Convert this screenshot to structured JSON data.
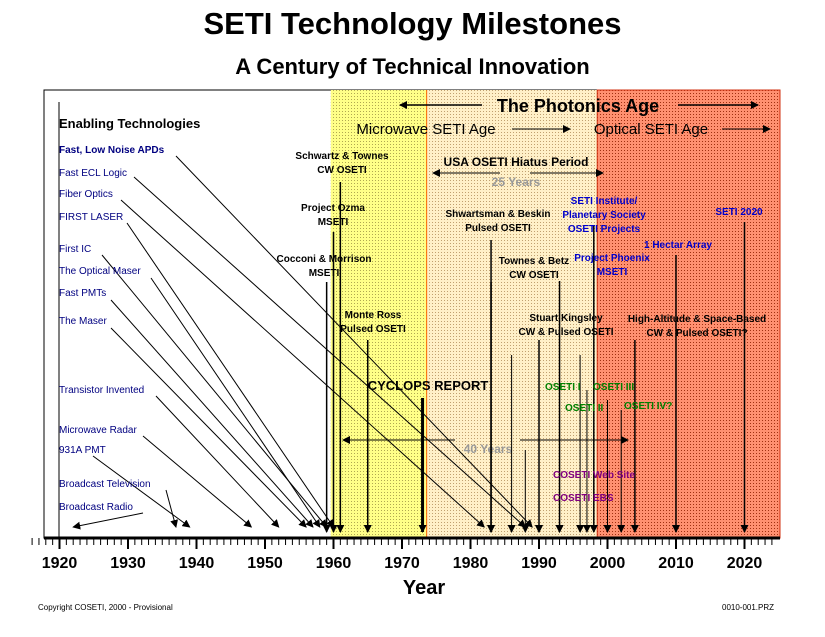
{
  "title": "SETI Technology Milestones",
  "subtitle": "A Century of Technical Innovation",
  "copyright": "Copyright COSETI, 2000 - Provisional",
  "doc_id": "0010-001.PRZ",
  "colors": {
    "microwave_band": "#ffff66",
    "optical_band": "#ff8060",
    "enabling_text": "#000080",
    "seti_text": "#000000",
    "blue_label": "#0000cc",
    "green_label": "#008000",
    "purple_label": "#800080",
    "grey_label": "#999999"
  },
  "axis": {
    "xlabel": "Year",
    "ticks": [
      1920,
      1930,
      1940,
      1950,
      1960,
      1970,
      1980,
      1990,
      2000,
      2010,
      2020
    ]
  },
  "ages": {
    "photonics": "The Photonics Age",
    "microwave": "Microwave SETI Age",
    "optical": "Optical SETI Age",
    "hiatus": "USA OSETI Hiatus Period",
    "hiatus_span": "25 Years",
    "forty_years": "40 Years"
  },
  "enabling_header": "Enabling Technologies",
  "enabling": [
    {
      "label": "Fast, Low Noise APDs",
      "year": 1989,
      "highlight": true
    },
    {
      "label": "Fast ECL Logic",
      "year": 1988
    },
    {
      "label": "Fiber Optics",
      "year": 1982
    },
    {
      "label": "FIRST LASER",
      "year": 1960
    },
    {
      "label": "First IC",
      "year": 1959
    },
    {
      "label": "The Optical Maser",
      "year": 1958
    },
    {
      "label": "Fast PMTs",
      "year": 1957
    },
    {
      "label": "The Maser",
      "year": 1956
    },
    {
      "label": "Transistor Invented",
      "year": 1952
    },
    {
      "label": "Microwave Radar",
      "year": 1948
    },
    {
      "label": "931A PMT",
      "year": 1939
    },
    {
      "label": "Broadcast Television",
      "year": 1937
    },
    {
      "label": "Broadcast Radio",
      "year": 1922
    }
  ],
  "seti": [
    {
      "line1": "Schwartz & Townes",
      "line2": "CW OSETI",
      "year": 1961
    },
    {
      "line1": "Project Ozma",
      "line2": "MSETI",
      "year": 1960
    },
    {
      "line1": "Cocconi & Morrison",
      "line2": "MSETI",
      "year": 1959
    },
    {
      "line1": "Monte Ross",
      "line2": "Pulsed OSETI",
      "year": 1965
    },
    {
      "line1": "CYCLOPS REPORT",
      "year": 1973
    },
    {
      "line1": "Shwartsman & Beskin",
      "line2": "Pulsed OSETI",
      "year": 1983
    },
    {
      "line1": "Townes & Betz",
      "line2": "CW OSETI",
      "year": 1983
    },
    {
      "line1": "Stuart Kingsley",
      "line2": "CW & Pulsed OSETI",
      "year": 1990
    },
    {
      "line1": "SETI Institute/",
      "line2": "Planetary Society",
      "line3": "OSETI Projects",
      "year": 1998
    },
    {
      "line1": "Project Phoenix",
      "line2": "MSETI",
      "year": 1993
    },
    {
      "line1": "1 Hectar Array",
      "year": 2010
    },
    {
      "line1": "SETI 2020",
      "year": 2020
    },
    {
      "line1": "High-Altitude & Space-Based",
      "line2": "CW & Pulsed OSETI?",
      "year": 2004
    }
  ],
  "conferences": {
    "oseti1": "OSETI I",
    "oseti2": "OSETI II",
    "oseti3": "OSETI III",
    "oseti4": "OSETI IV?",
    "web": "COSETI Web Site",
    "ebs": "COSETI EBS"
  }
}
